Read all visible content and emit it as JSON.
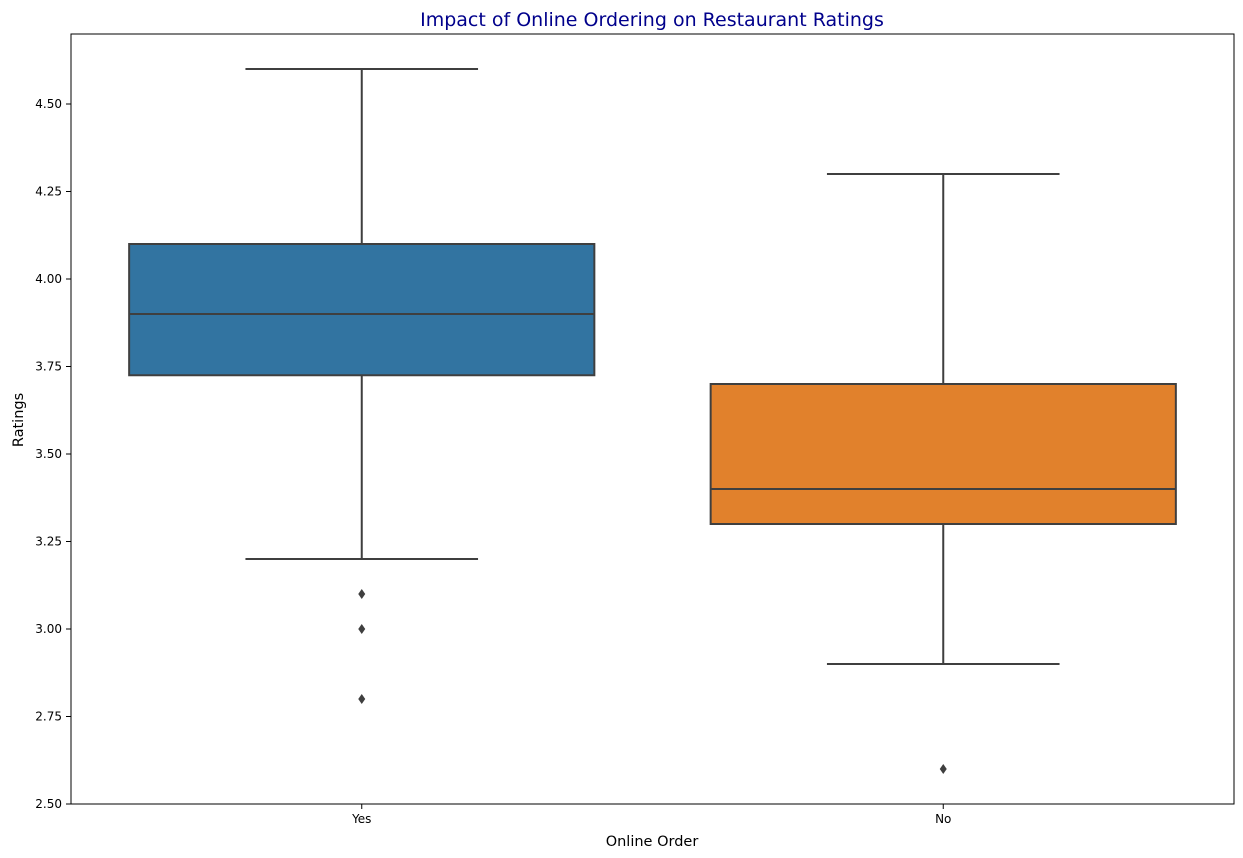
{
  "chart_data": {
    "type": "box",
    "title": "Impact of Online Ordering on Restaurant Ratings",
    "xlabel": "Online Order",
    "ylabel": "Ratings",
    "categories": [
      "Yes",
      "No"
    ],
    "ylim": [
      2.5,
      4.7
    ],
    "yticks": [
      "2.50",
      "2.75",
      "3.00",
      "3.25",
      "3.50",
      "3.75",
      "4.00",
      "4.25",
      "4.50"
    ],
    "boxes": [
      {
        "category": "Yes",
        "whisker_low": 3.2,
        "q1": 3.725,
        "median": 3.9,
        "q3": 4.1,
        "whisker_high": 4.6,
        "outliers": [
          3.1,
          3.0,
          2.8
        ],
        "color": "#3274a1"
      },
      {
        "category": "No",
        "whisker_low": 2.9,
        "q1": 3.3,
        "median": 3.4,
        "q3": 3.7,
        "whisker_high": 4.3,
        "outliers": [
          2.6
        ],
        "color": "#e1812c"
      }
    ],
    "grid": false
  }
}
